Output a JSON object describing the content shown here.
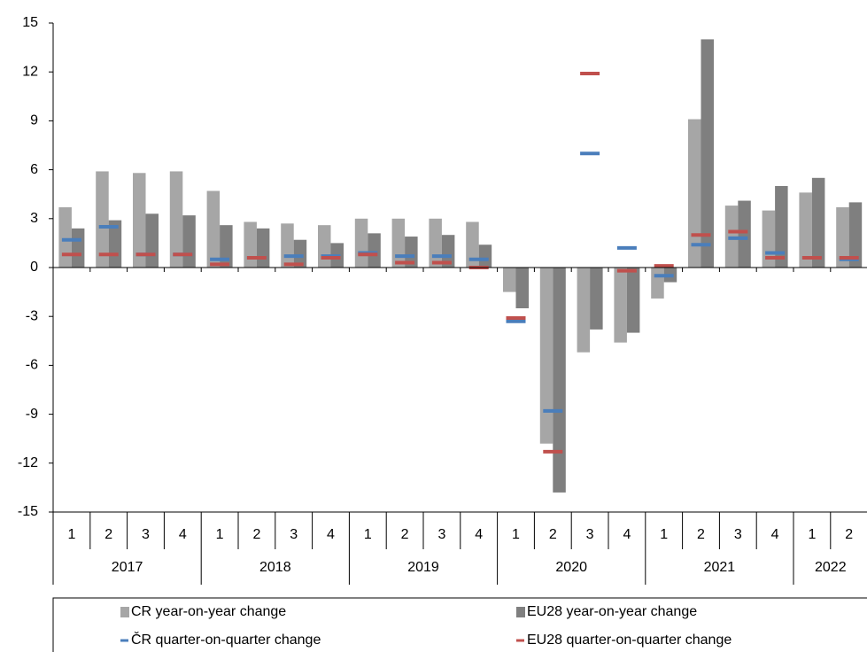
{
  "chart_data": {
    "type": "bar",
    "categories": [
      "1",
      "2",
      "3",
      "4",
      "1",
      "2",
      "3",
      "4",
      "1",
      "2",
      "3",
      "4",
      "1",
      "2",
      "3",
      "4",
      "1",
      "2",
      "3",
      "4",
      "1",
      "2"
    ],
    "year_labels": [
      "2017",
      null,
      null,
      null,
      "2018",
      null,
      null,
      null,
      "2019",
      null,
      null,
      null,
      "2020",
      null,
      null,
      null,
      "2021",
      null,
      null,
      null,
      "2022",
      null
    ],
    "series": [
      {
        "name": "CR year-on-year change",
        "color": "#a6a6a6",
        "mark": "bar",
        "values": [
          3.7,
          5.9,
          5.8,
          5.9,
          4.7,
          2.8,
          2.7,
          2.6,
          3.0,
          3.0,
          3.0,
          2.8,
          -1.5,
          -10.8,
          -5.2,
          -4.6,
          -1.9,
          9.1,
          3.8,
          3.5,
          4.6,
          3.7
        ]
      },
      {
        "name": "EU28 year-on-year change",
        "color": "#7f7f7f",
        "mark": "bar",
        "values": [
          2.4,
          2.9,
          3.3,
          3.2,
          2.6,
          2.4,
          1.7,
          1.5,
          2.1,
          1.9,
          2.0,
          1.4,
          -2.5,
          -13.8,
          -3.8,
          -4.0,
          -0.9,
          14.0,
          4.1,
          5.0,
          5.5,
          4.0
        ]
      },
      {
        "name": "ČR quarter-on-quarter change",
        "color": "#4a7ebb",
        "mark": "dash",
        "values": [
          1.7,
          2.5,
          0.8,
          0.8,
          0.5,
          0.6,
          0.7,
          0.7,
          0.9,
          0.7,
          0.7,
          0.5,
          -3.3,
          -8.8,
          7.0,
          1.2,
          -0.5,
          1.4,
          1.8,
          0.9,
          0.6,
          0.5
        ]
      },
      {
        "name": "EU28 quarter-on-quarter change",
        "color": "#c0504d",
        "mark": "dash",
        "values": [
          0.8,
          0.8,
          0.8,
          0.8,
          0.2,
          0.6,
          0.2,
          0.6,
          0.8,
          0.3,
          0.3,
          0.0,
          -3.1,
          -11.3,
          11.9,
          -0.2,
          0.1,
          2.0,
          2.2,
          0.6,
          0.6,
          0.6
        ]
      }
    ],
    "ylim": [
      -15,
      15
    ],
    "yticks": [
      -15,
      -12,
      -9,
      -6,
      -3,
      0,
      3,
      6,
      9,
      12,
      15
    ]
  }
}
